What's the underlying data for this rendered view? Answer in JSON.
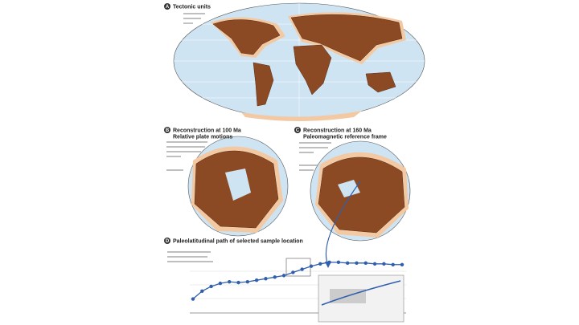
{
  "panels": [
    {
      "letter": "A",
      "title": [
        "Tectonic units"
      ]
    },
    {
      "letter": "B",
      "title": [
        "Reconstruction at 100 Ma",
        "Relative plate motions"
      ]
    },
    {
      "letter": "C",
      "title": [
        "Reconstruction at 160 Ma",
        "Paleomagnetic reference frame"
      ]
    },
    {
      "letter": "D",
      "title": [
        "Paleolatitudinal path of selected sample location"
      ]
    }
  ],
  "chart_data": {
    "type": "line",
    "color": "#2f5fae",
    "values": [
      18,
      28,
      34,
      38,
      40,
      39,
      40,
      42,
      44,
      46,
      48,
      52,
      56,
      60,
      63,
      65,
      65,
      64,
      64,
      64,
      63,
      63,
      62,
      62
    ],
    "ylim": [
      0,
      70
    ]
  }
}
